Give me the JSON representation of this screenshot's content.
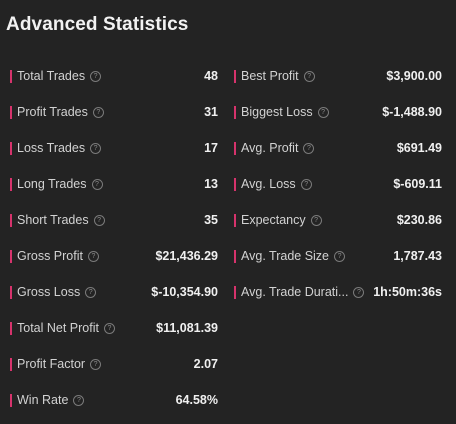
{
  "title": "Advanced Statistics",
  "colors": {
    "background": "#232323",
    "accent_bar": "#d6336c",
    "text": "#f0f0f0"
  },
  "info_icon": "question-circle-icon",
  "left": [
    {
      "label": "Total Trades",
      "value": "48"
    },
    {
      "label": "Profit Trades",
      "value": "31"
    },
    {
      "label": "Loss Trades",
      "value": "17"
    },
    {
      "label": "Long Trades",
      "value": "13"
    },
    {
      "label": "Short Trades",
      "value": "35"
    },
    {
      "label": "Gross Profit",
      "value": "$21,436.29"
    },
    {
      "label": "Gross Loss",
      "value": "$-10,354.90"
    },
    {
      "label": "Total Net Profit",
      "value": "$11,081.39"
    },
    {
      "label": "Profit Factor",
      "value": "2.07"
    },
    {
      "label": "Win Rate",
      "value": "64.58%"
    }
  ],
  "right": [
    {
      "label": "Best Profit",
      "value": "$3,900.00"
    },
    {
      "label": "Biggest Loss",
      "value": "$-1,488.90"
    },
    {
      "label": "Avg. Profit",
      "value": "$691.49"
    },
    {
      "label": "Avg. Loss",
      "value": "$-609.11"
    },
    {
      "label": "Expectancy",
      "value": "$230.86"
    },
    {
      "label": "Avg. Trade Size",
      "value": "1,787.43"
    },
    {
      "label": "Avg. Trade Durati...",
      "value": "1h:50m:36s"
    }
  ]
}
